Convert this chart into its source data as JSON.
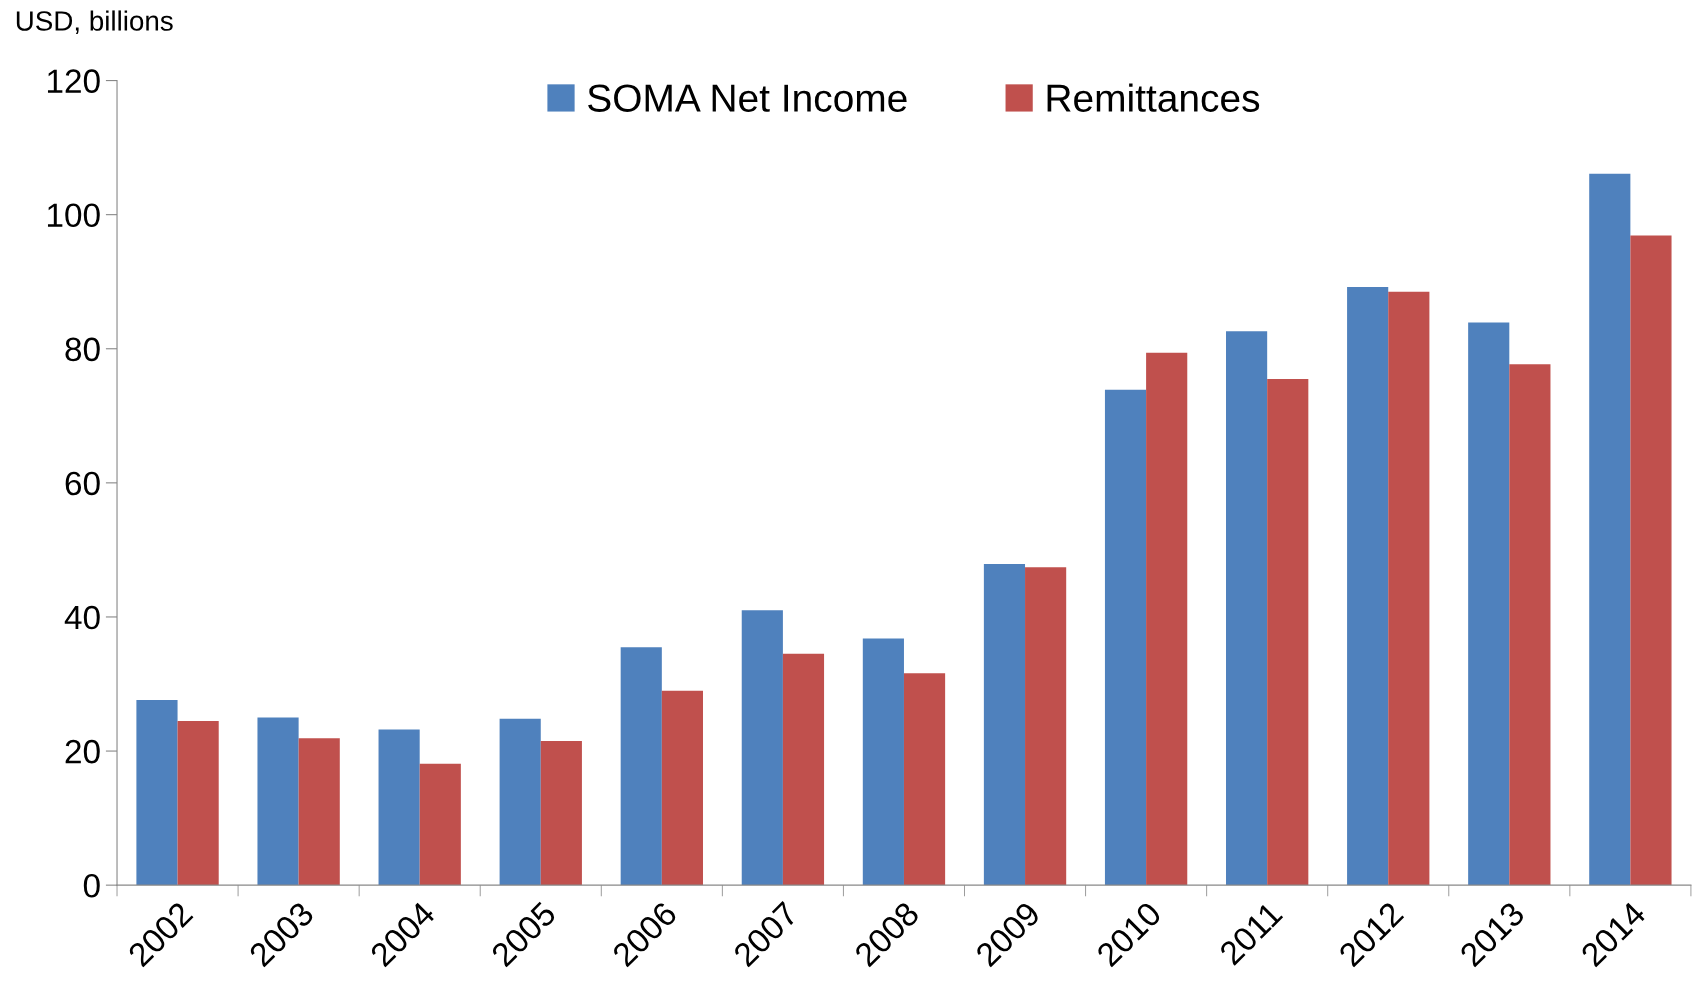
{
  "chart_data": {
    "type": "bar",
    "ylabel": "USD, billions",
    "categories": [
      "2002",
      "2003",
      "2004",
      "2005",
      "2006",
      "2007",
      "2008",
      "2009",
      "2010",
      "2011",
      "2012",
      "2013",
      "2014"
    ],
    "series": [
      {
        "name": "SOMA Net Income",
        "color": "#4f81bd",
        "values": [
          27.6,
          25.0,
          23.2,
          24.8,
          35.5,
          41.0,
          36.8,
          47.9,
          73.9,
          82.6,
          89.2,
          83.9,
          106.1
        ]
      },
      {
        "name": "Remittances",
        "color": "#c0504d",
        "values": [
          24.5,
          21.9,
          18.1,
          21.5,
          29.0,
          34.5,
          31.6,
          47.4,
          79.4,
          75.5,
          88.5,
          77.7,
          96.9
        ]
      }
    ],
    "ylim": [
      0,
      120
    ],
    "yticks": [
      0,
      20,
      40,
      60,
      80,
      100,
      120
    ],
    "grid": false,
    "legend": "top"
  }
}
